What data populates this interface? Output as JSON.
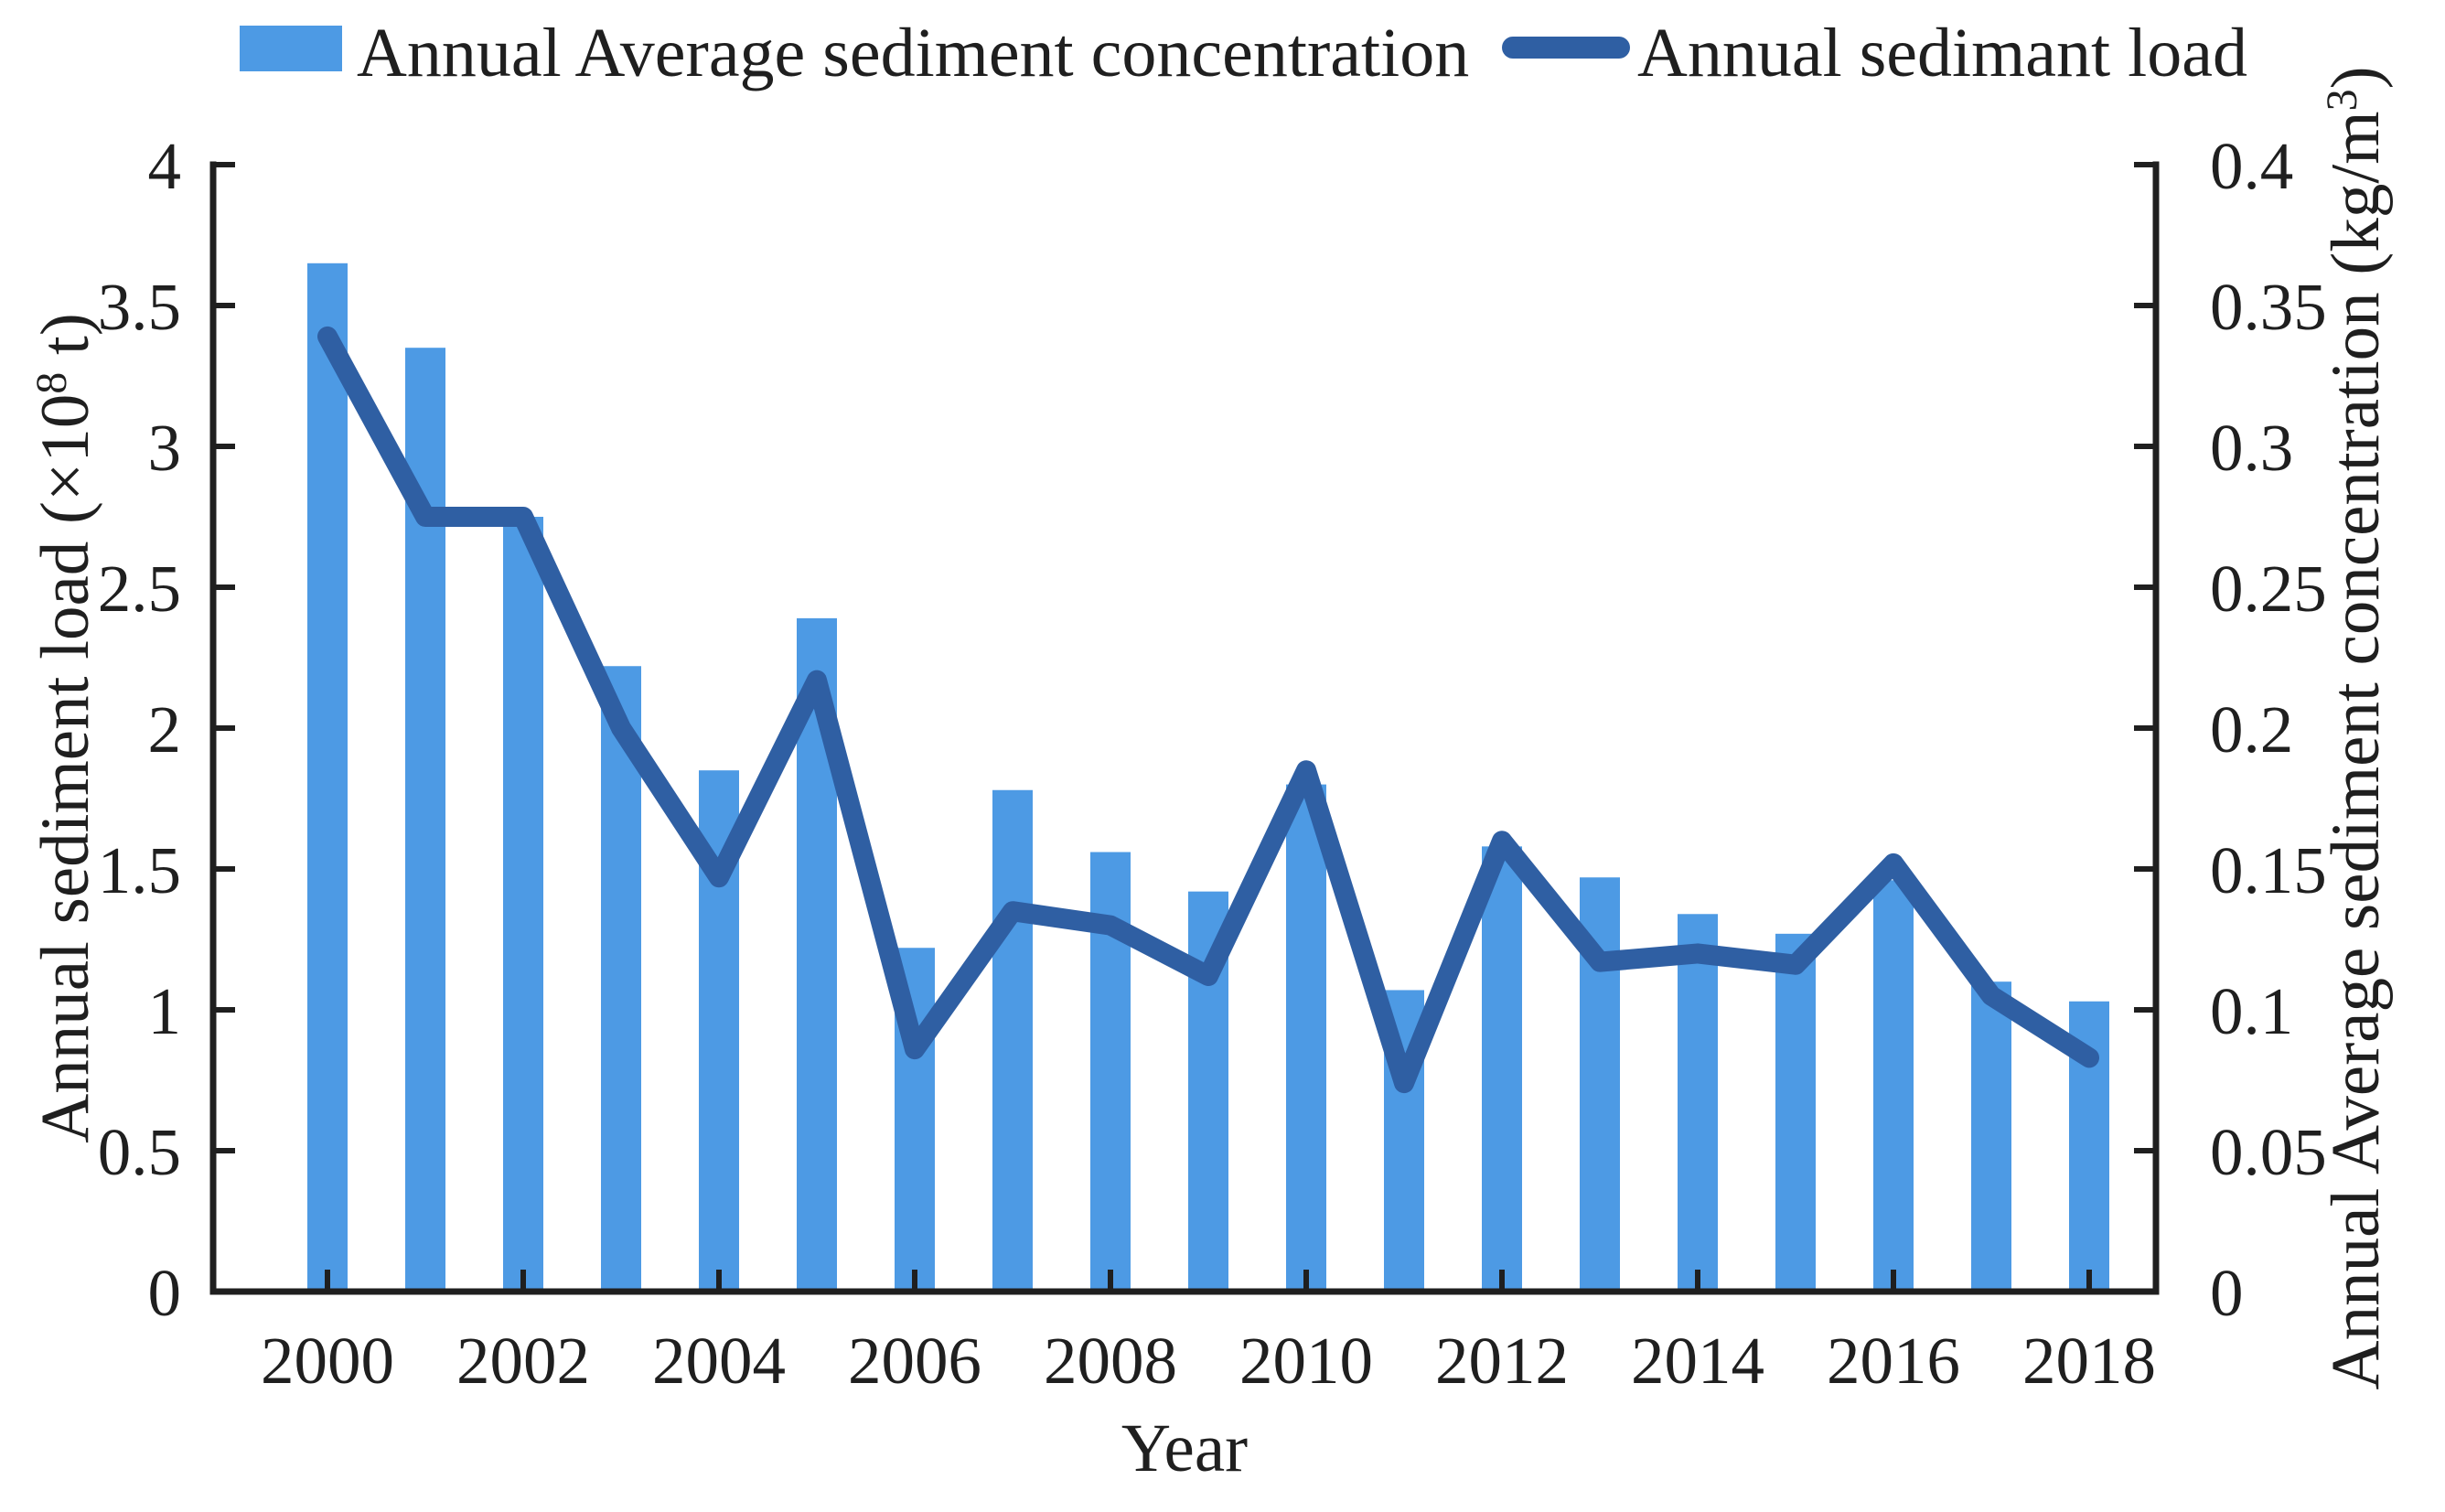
{
  "figure": {
    "background": "#ffffff",
    "text_color": "#1f1f1f"
  },
  "legend": {
    "bar_label": "Annual Average sediment concentration",
    "line_label": "Annual sedimant load"
  },
  "chart_data": {
    "type": "bar+line",
    "title": "",
    "x": [
      2000,
      2001,
      2002,
      2003,
      2004,
      2005,
      2006,
      2007,
      2008,
      2009,
      2010,
      2011,
      2012,
      2013,
      2014,
      2015,
      2016,
      2017,
      2018
    ],
    "series": [
      {
        "name": "Annual Average sediment concentration",
        "type": "bar",
        "axis": "right",
        "unit": "kg/m3",
        "color": "#4D9AE4",
        "values": [
          0.365,
          0.335,
          0.275,
          0.222,
          0.185,
          0.239,
          0.122,
          0.178,
          0.156,
          0.142,
          0.18,
          0.107,
          0.158,
          0.147,
          0.134,
          0.127,
          0.146,
          0.11,
          0.103
        ]
      },
      {
        "name": "Annual sedimant load",
        "type": "line",
        "axis": "left",
        "unit": "x10^8 t",
        "color": "#2F5FA3",
        "values": [
          3.39,
          2.75,
          2.75,
          2.0,
          1.47,
          2.17,
          0.86,
          1.35,
          1.3,
          1.12,
          1.85,
          0.74,
          1.6,
          1.17,
          1.2,
          1.16,
          1.52,
          1.05,
          0.83
        ]
      }
    ],
    "left_axis": {
      "title": "Annual sediment load (×10⁸ t)",
      "title_parts": [
        "Annual sediment load (×10",
        "8",
        " t)"
      ],
      "min": 0,
      "max": 4,
      "step": 0.5,
      "ticks": [
        "0",
        "0.5",
        "1",
        "1.5",
        "2",
        "2.5",
        "3",
        "3.5",
        "4"
      ]
    },
    "right_axis": {
      "title": "Annual Average sediment concentration (kg/m³)",
      "title_parts": [
        "Annual Average sediment concentration (kg/m",
        "3",
        ")"
      ],
      "min": 0,
      "max": 0.4,
      "step": 0.05,
      "ticks": [
        "0",
        "0.05",
        "0.1",
        "0.15",
        "0.2",
        "0.25",
        "0.3",
        "0.35",
        "0.4"
      ]
    },
    "x_axis": {
      "title": "Year",
      "tick_labels": [
        "2000",
        "2002",
        "2004",
        "2006",
        "2008",
        "2010",
        "2012",
        "2014",
        "2016",
        "2018"
      ]
    },
    "legend_position": "top",
    "grid": false,
    "colors": {
      "bar": "#4D9AE4",
      "line": "#2F5FA3",
      "axis": "#1f1f1f"
    }
  }
}
